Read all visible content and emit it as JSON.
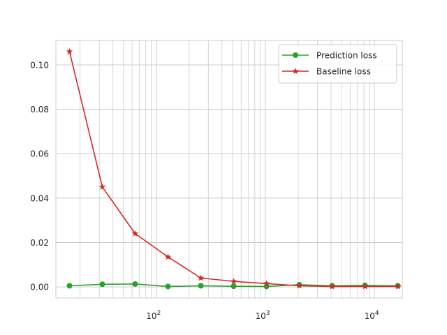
{
  "chart_data": {
    "type": "line",
    "x_scale": "log",
    "xlim": [
      12,
      18000
    ],
    "ylim": [
      -0.005,
      0.111
    ],
    "grid": true,
    "minor_grid_x": true,
    "legend_position": "top-right",
    "x": [
      16,
      32,
      64,
      128,
      256,
      512,
      1024,
      2048,
      4096,
      8192,
      16384
    ],
    "x_ticks": [
      100,
      1000,
      10000
    ],
    "x_tick_labels": [
      {
        "base": "10",
        "exp": "2"
      },
      {
        "base": "10",
        "exp": "3"
      },
      {
        "base": "10",
        "exp": "4"
      }
    ],
    "y_ticks": [
      0.0,
      0.02,
      0.04,
      0.06,
      0.08,
      0.1
    ],
    "y_tick_labels": [
      "0.00",
      "0.02",
      "0.04",
      "0.06",
      "0.08",
      "0.10"
    ],
    "series": [
      {
        "name": "Prediction loss",
        "color": "#2ca02c",
        "marker": "circle",
        "values": [
          0.0005,
          0.0012,
          0.0013,
          0.0002,
          0.0005,
          0.0003,
          0.0002,
          0.001,
          0.0005,
          0.0007,
          0.0005
        ]
      },
      {
        "name": "Baseline loss",
        "color": "#d62728",
        "marker": "star",
        "values": [
          0.106,
          0.045,
          0.024,
          0.0135,
          0.004,
          0.0025,
          0.0015,
          0.0005,
          0.0002,
          0.0002,
          0.0002
        ]
      }
    ]
  }
}
